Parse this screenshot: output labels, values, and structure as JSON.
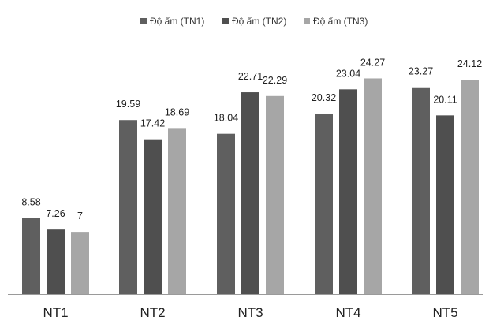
{
  "chart_data": {
    "type": "bar",
    "title": "",
    "xlabel": "",
    "ylabel": "",
    "categories": [
      "NT1",
      "NT2",
      "NT3",
      "NT4",
      "NT5"
    ],
    "series": [
      {
        "name": "Độ ẩm (TN1)",
        "color": "#5f5f5f",
        "values": [
          8.58,
          19.59,
          18.04,
          20.32,
          23.27
        ]
      },
      {
        "name": "Độ ẩm (TN2)",
        "color": "#4f4f4f",
        "values": [
          7.26,
          17.42,
          22.71,
          23.04,
          20.11
        ]
      },
      {
        "name": "Độ ẩm (TN3)",
        "color": "#a6a6a6",
        "values": [
          7,
          18.69,
          22.29,
          24.27,
          24.12
        ]
      }
    ],
    "value_labels": [
      [
        "8.58",
        "19.59",
        "18.04",
        "20.32",
        "23.27"
      ],
      [
        "7.26",
        "17.42",
        "22.71",
        "23.04",
        "20.11"
      ],
      [
        "7",
        "18.69",
        "22.29",
        "24.27",
        "24.12"
      ]
    ],
    "ylim": [
      0,
      26
    ],
    "grid": false,
    "legend_position": "top-center"
  }
}
